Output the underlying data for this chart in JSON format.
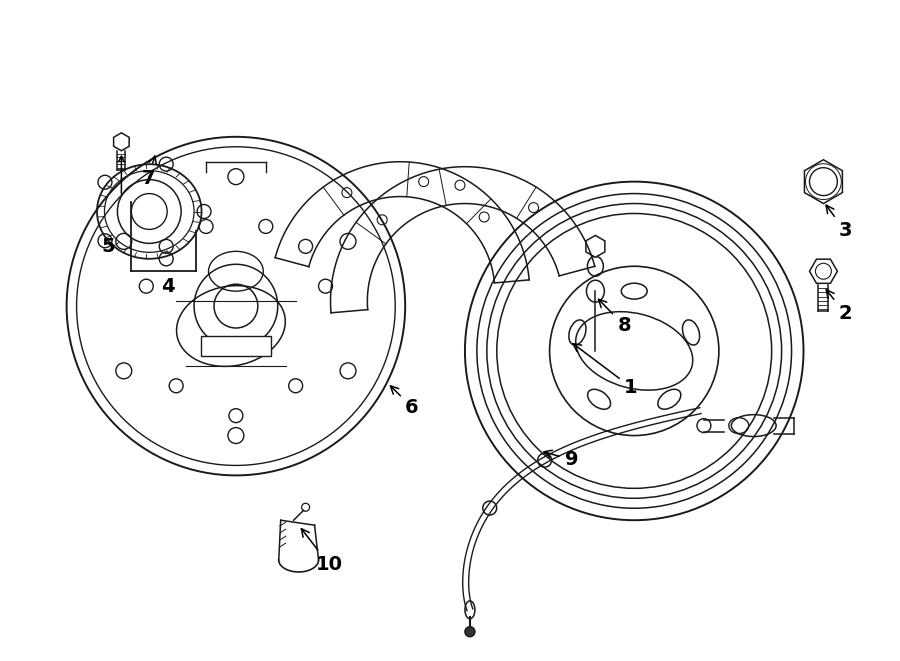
{
  "bg_color": "#ffffff",
  "line_color": "#1a1a1a",
  "lw": 1.1,
  "fig_width": 9.0,
  "fig_height": 6.61,
  "dpi": 100
}
